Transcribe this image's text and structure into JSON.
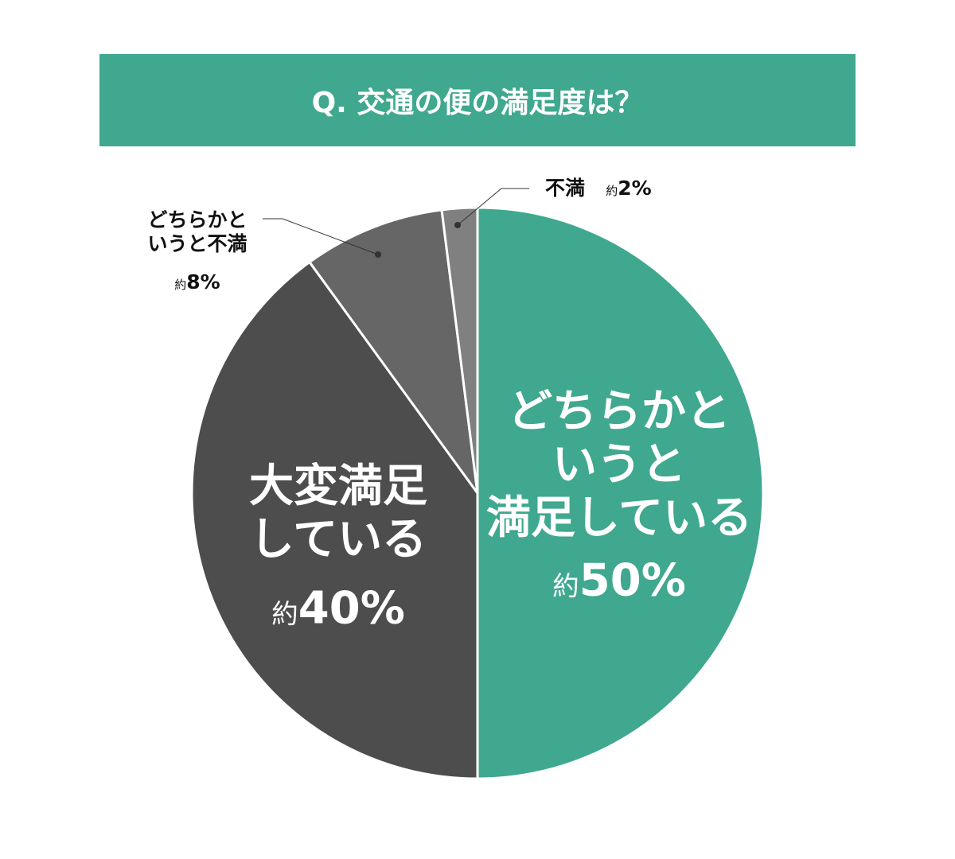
{
  "chart_data": {
    "type": "pie",
    "title": "Q. 交通の便の満足度は？",
    "categories": [
      "どちらかと\nいうと\n満足している",
      "大変満足\nしている",
      "どちらかと\nいうと不満",
      "不満"
    ],
    "values": [
      50,
      40,
      8,
      2
    ],
    "value_labels": [
      "約50%",
      "約40%",
      "約8%",
      "約2%"
    ],
    "colors": [
      "#3fa88f",
      "#4d4d4d",
      "#666666",
      "#808080"
    ]
  }
}
